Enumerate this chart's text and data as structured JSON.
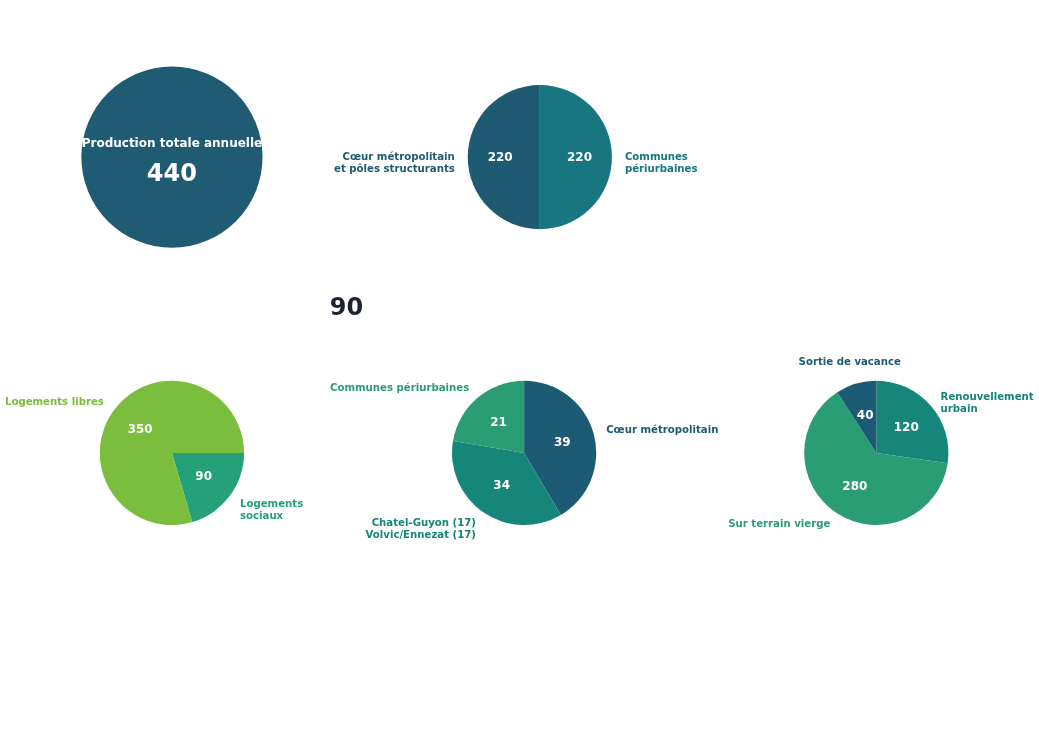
{
  "chart_data": [
    {
      "type": "pie",
      "title": "Production totale annuelle",
      "categories": [
        null
      ],
      "values": [
        440
      ],
      "colors": [
        "#1f5b73"
      ],
      "data_labels": true
    },
    {
      "type": "pie",
      "categories": [
        "Communes\npériurbaines",
        "Cœur métropolitain\net pôles structurants"
      ],
      "values": [
        220,
        220
      ],
      "colors": [
        "#17767f",
        "#1f5a73"
      ],
      "data_labels": true
    },
    {
      "type": "pie",
      "categories": [
        "Logements\nsociaux",
        "Logements libres"
      ],
      "values": [
        90,
        350
      ],
      "colors": [
        "#26a079",
        "#7bbd3c"
      ],
      "data_labels": true
    },
    {
      "type": "pie",
      "title": "90",
      "categories": [
        "Cœur métropolitain",
        "Chatel-Guyon (17)\nVolvic/Ennezat (17)",
        "Communes périurbaines"
      ],
      "values": [
        39,
        34,
        21
      ],
      "colors": [
        "#1d5a74",
        "#16867a",
        "#2a9d74"
      ],
      "data_labels": true
    },
    {
      "type": "pie",
      "categories": [
        "Renouvellement\nurbain",
        "Sur terrain vierge",
        "Sortie de vacance"
      ],
      "values": [
        120,
        280,
        40
      ],
      "colors": [
        "#16867a",
        "#2a9d74",
        "#1d5a74"
      ],
      "data_labels": true
    }
  ]
}
